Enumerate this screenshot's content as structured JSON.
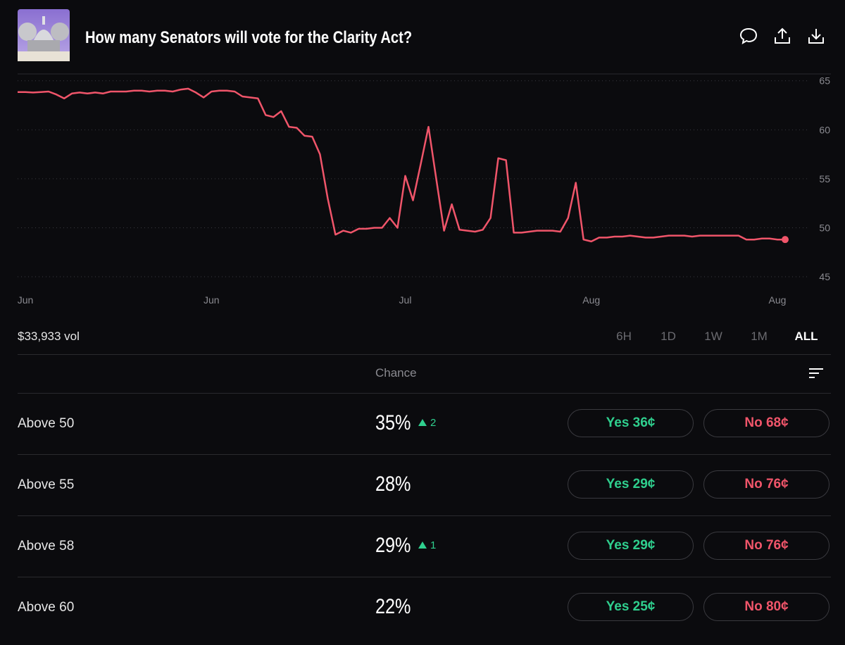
{
  "header": {
    "title": "How many Senators will vote for the Clarity Act?"
  },
  "chart_data": {
    "type": "line",
    "categories": [
      null,
      "Jun",
      null,
      null,
      null,
      null,
      null,
      null,
      null,
      null,
      null,
      null,
      null,
      null,
      null,
      null,
      null,
      null,
      null,
      null,
      null,
      null,
      null,
      null,
      null,
      "Jun",
      null,
      null,
      null,
      null,
      null,
      null,
      null,
      null,
      null,
      null,
      null,
      null,
      null,
      null,
      null,
      null,
      null,
      null,
      null,
      null,
      null,
      null,
      null,
      null,
      "Jul",
      null,
      null,
      null,
      null,
      null,
      null,
      null,
      null,
      null,
      null,
      null,
      null,
      null,
      null,
      null,
      null,
      null,
      null,
      null,
      null,
      null,
      null,
      null,
      "Aug",
      null,
      null,
      null,
      null,
      null,
      null,
      null,
      null,
      null,
      null,
      null,
      null,
      null,
      null,
      null,
      null,
      null,
      null,
      null,
      null,
      null,
      null,
      null,
      "Aug",
      null
    ],
    "series": [
      {
        "color": "#f0556a",
        "values": [
          63.85,
          63.85,
          63.8,
          63.85,
          63.9,
          63.6,
          63.2,
          63.7,
          63.8,
          63.7,
          63.8,
          63.7,
          63.9,
          63.9,
          63.9,
          64.0,
          64.0,
          63.9,
          64.0,
          64.0,
          63.9,
          64.1,
          64.2,
          63.8,
          63.3,
          63.9,
          64.0,
          64.0,
          63.9,
          63.4,
          63.3,
          63.2,
          61.5,
          61.3,
          61.9,
          60.3,
          60.2,
          59.4,
          59.3,
          57.5,
          53.0,
          49.3,
          49.7,
          49.5,
          49.9,
          49.9,
          50.0,
          50.0,
          51.0,
          50.0,
          55.3,
          52.8,
          56.5,
          60.3,
          55.0,
          49.7,
          52.4,
          49.8,
          49.7,
          49.6,
          49.8,
          51.0,
          57.1,
          56.9,
          49.5,
          49.5,
          49.6,
          49.7,
          49.7,
          49.7,
          49.6,
          51.0,
          54.6,
          48.8,
          48.6,
          49.0,
          49.0,
          49.1,
          49.1,
          49.2,
          49.1,
          49.0,
          49.0,
          49.1,
          49.2,
          49.2,
          49.2,
          49.1,
          49.2,
          49.2,
          49.2,
          49.2,
          49.2,
          49.2,
          48.8,
          48.8,
          48.9,
          48.9,
          48.8,
          48.8
        ]
      }
    ],
    "ylim": [
      44.5,
      65.7
    ],
    "yticks": [
      45,
      50,
      55,
      60,
      65
    ],
    "grid": true
  },
  "volume": "$33,933 vol",
  "ranges": [
    "6H",
    "1D",
    "1W",
    "1M",
    "ALL"
  ],
  "active_range": "ALL",
  "table": {
    "header": "Chance",
    "rows": [
      {
        "label": "Above 50",
        "chance": "35%",
        "change": "2",
        "yes": "Yes 36¢",
        "no": "No 68¢"
      },
      {
        "label": "Above 55",
        "chance": "28%",
        "yes": "Yes 29¢",
        "no": "No 76¢"
      },
      {
        "label": "Above 58",
        "chance": "29%",
        "change": "1",
        "yes": "Yes 29¢",
        "no": "No 76¢"
      },
      {
        "label": "Above 60",
        "chance": "22%",
        "yes": "Yes 25¢",
        "no": "No 80¢"
      }
    ]
  }
}
